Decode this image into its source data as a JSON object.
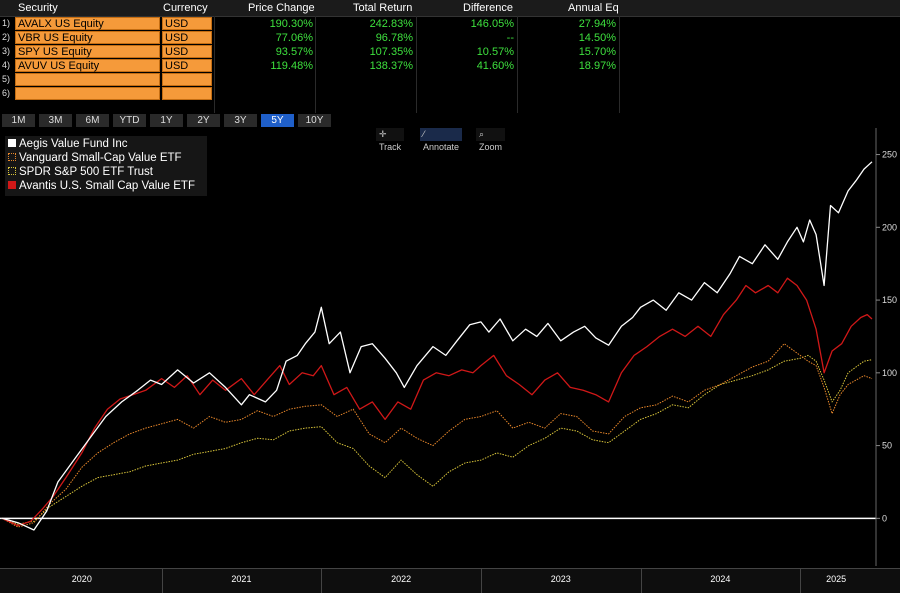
{
  "table": {
    "headers": [
      "Security",
      "Currency",
      "Price Change",
      "Total Return",
      "Difference",
      "Annual Eq"
    ],
    "rows": [
      {
        "num": "1)",
        "security": "AVALX US Equity",
        "currency": "USD",
        "price_change": "190.30%",
        "total_return": "242.83%",
        "difference": "146.05%",
        "annual_eq": "27.94%"
      },
      {
        "num": "2)",
        "security": "VBR US Equity",
        "currency": "USD",
        "price_change": "77.06%",
        "total_return": "96.78%",
        "difference": "--",
        "annual_eq": "14.50%"
      },
      {
        "num": "3)",
        "security": "SPY US Equity",
        "currency": "USD",
        "price_change": "93.57%",
        "total_return": "107.35%",
        "difference": "10.57%",
        "annual_eq": "15.70%"
      },
      {
        "num": "4)",
        "security": "AVUV US Equity",
        "currency": "USD",
        "price_change": "119.48%",
        "total_return": "138.37%",
        "difference": "41.60%",
        "annual_eq": "18.97%"
      },
      {
        "num": "5)",
        "security": "",
        "currency": "",
        "price_change": "",
        "total_return": "",
        "difference": "",
        "annual_eq": ""
      },
      {
        "num": "6)",
        "security": "",
        "currency": "",
        "price_change": "",
        "total_return": "",
        "difference": "",
        "annual_eq": ""
      }
    ]
  },
  "ranges": [
    "1M",
    "3M",
    "6M",
    "YTD",
    "1Y",
    "2Y",
    "3Y",
    "5Y",
    "10Y"
  ],
  "active_range": "5Y",
  "tools": {
    "track": "Track",
    "annotate": "Annotate",
    "zoom": "Zoom"
  },
  "colors": {
    "header_bg": "#1b1b1b",
    "cell_orange": "#f59a3a",
    "positive_green": "#3ee03e",
    "active_blue": "#1f5fc9",
    "aegis": "#ffffff",
    "vbr": "#e8872a",
    "spy": "#d8c43a",
    "avuv": "#d01818"
  },
  "chart_data": {
    "type": "line",
    "x_labels": [
      "2020",
      "2021",
      "2022",
      "2023",
      "2024",
      "2025"
    ],
    "y_ticks": [
      0,
      50,
      100,
      150,
      200,
      250
    ],
    "ylim": [
      -30,
      260
    ],
    "x_range": [
      2020.0,
      2025.45
    ],
    "grid": false,
    "legend_position": "top-left",
    "series": [
      {
        "name": "Aegis Value Fund Inc",
        "key": "aegis",
        "style": "solid",
        "points": [
          [
            2020.0,
            0
          ],
          [
            2020.1,
            -3
          ],
          [
            2020.2,
            -8
          ],
          [
            2020.28,
            5
          ],
          [
            2020.35,
            25
          ],
          [
            2020.45,
            40
          ],
          [
            2020.55,
            55
          ],
          [
            2020.65,
            70
          ],
          [
            2020.75,
            80
          ],
          [
            2020.85,
            88
          ],
          [
            2020.93,
            95
          ],
          [
            2021.0,
            92
          ],
          [
            2021.1,
            102
          ],
          [
            2021.2,
            93
          ],
          [
            2021.3,
            100
          ],
          [
            2021.4,
            90
          ],
          [
            2021.5,
            78
          ],
          [
            2021.55,
            85
          ],
          [
            2021.65,
            80
          ],
          [
            2021.72,
            88
          ],
          [
            2021.78,
            108
          ],
          [
            2021.85,
            112
          ],
          [
            2021.9,
            120
          ],
          [
            2021.96,
            128
          ],
          [
            2022.0,
            145
          ],
          [
            2022.05,
            120
          ],
          [
            2022.12,
            128
          ],
          [
            2022.18,
            100
          ],
          [
            2022.25,
            118
          ],
          [
            2022.32,
            120
          ],
          [
            2022.4,
            110
          ],
          [
            2022.47,
            100
          ],
          [
            2022.52,
            90
          ],
          [
            2022.6,
            105
          ],
          [
            2022.7,
            118
          ],
          [
            2022.78,
            112
          ],
          [
            2022.85,
            122
          ],
          [
            2022.93,
            133
          ],
          [
            2023.0,
            135
          ],
          [
            2023.05,
            128
          ],
          [
            2023.12,
            137
          ],
          [
            2023.2,
            122
          ],
          [
            2023.28,
            130
          ],
          [
            2023.35,
            125
          ],
          [
            2023.42,
            134
          ],
          [
            2023.5,
            122
          ],
          [
            2023.58,
            128
          ],
          [
            2023.65,
            132
          ],
          [
            2023.72,
            124
          ],
          [
            2023.8,
            119
          ],
          [
            2023.88,
            132
          ],
          [
            2023.95,
            138
          ],
          [
            2024.0,
            145
          ],
          [
            2024.08,
            150
          ],
          [
            2024.16,
            143
          ],
          [
            2024.24,
            155
          ],
          [
            2024.32,
            150
          ],
          [
            2024.4,
            162
          ],
          [
            2024.48,
            155
          ],
          [
            2024.56,
            168
          ],
          [
            2024.62,
            180
          ],
          [
            2024.7,
            175
          ],
          [
            2024.78,
            188
          ],
          [
            2024.86,
            178
          ],
          [
            2024.92,
            190
          ],
          [
            2024.98,
            200
          ],
          [
            2025.02,
            190
          ],
          [
            2025.06,
            205
          ],
          [
            2025.1,
            195
          ],
          [
            2025.15,
            160
          ],
          [
            2025.19,
            215
          ],
          [
            2025.24,
            210
          ],
          [
            2025.3,
            225
          ],
          [
            2025.35,
            232
          ],
          [
            2025.4,
            240
          ],
          [
            2025.45,
            245
          ]
        ]
      },
      {
        "name": "Vanguard Small-Cap Value ETF",
        "key": "vbr",
        "style": "dotted",
        "points": [
          [
            2020.0,
            0
          ],
          [
            2020.1,
            -6
          ],
          [
            2020.2,
            -3
          ],
          [
            2020.3,
            10
          ],
          [
            2020.4,
            20
          ],
          [
            2020.5,
            35
          ],
          [
            2020.6,
            45
          ],
          [
            2020.7,
            52
          ],
          [
            2020.8,
            58
          ],
          [
            2020.9,
            62
          ],
          [
            2021.0,
            65
          ],
          [
            2021.1,
            68
          ],
          [
            2021.2,
            62
          ],
          [
            2021.3,
            70
          ],
          [
            2021.4,
            66
          ],
          [
            2021.5,
            68
          ],
          [
            2021.6,
            74
          ],
          [
            2021.7,
            70
          ],
          [
            2021.8,
            75
          ],
          [
            2021.9,
            77
          ],
          [
            2022.0,
            78
          ],
          [
            2022.1,
            70
          ],
          [
            2022.2,
            75
          ],
          [
            2022.3,
            58
          ],
          [
            2022.4,
            52
          ],
          [
            2022.5,
            62
          ],
          [
            2022.6,
            55
          ],
          [
            2022.7,
            50
          ],
          [
            2022.8,
            60
          ],
          [
            2022.9,
            68
          ],
          [
            2023.0,
            70
          ],
          [
            2023.1,
            74
          ],
          [
            2023.2,
            62
          ],
          [
            2023.3,
            66
          ],
          [
            2023.4,
            62
          ],
          [
            2023.5,
            72
          ],
          [
            2023.6,
            70
          ],
          [
            2023.7,
            60
          ],
          [
            2023.8,
            58
          ],
          [
            2023.9,
            70
          ],
          [
            2024.0,
            76
          ],
          [
            2024.1,
            78
          ],
          [
            2024.2,
            84
          ],
          [
            2024.3,
            80
          ],
          [
            2024.4,
            88
          ],
          [
            2024.5,
            92
          ],
          [
            2024.6,
            98
          ],
          [
            2024.7,
            104
          ],
          [
            2024.8,
            108
          ],
          [
            2024.9,
            120
          ],
          [
            2025.0,
            112
          ],
          [
            2025.05,
            108
          ],
          [
            2025.1,
            105
          ],
          [
            2025.15,
            90
          ],
          [
            2025.2,
            72
          ],
          [
            2025.25,
            85
          ],
          [
            2025.3,
            92
          ],
          [
            2025.35,
            95
          ],
          [
            2025.4,
            98
          ],
          [
            2025.45,
            96
          ]
        ]
      },
      {
        "name": "SPDR S&P 500 ETF Trust",
        "key": "spy",
        "style": "dotted",
        "points": [
          [
            2020.0,
            0
          ],
          [
            2020.1,
            -4
          ],
          [
            2020.2,
            -2
          ],
          [
            2020.3,
            8
          ],
          [
            2020.4,
            15
          ],
          [
            2020.5,
            22
          ],
          [
            2020.6,
            28
          ],
          [
            2020.7,
            30
          ],
          [
            2020.8,
            32
          ],
          [
            2020.9,
            36
          ],
          [
            2021.0,
            38
          ],
          [
            2021.1,
            40
          ],
          [
            2021.2,
            44
          ],
          [
            2021.3,
            46
          ],
          [
            2021.4,
            48
          ],
          [
            2021.5,
            52
          ],
          [
            2021.6,
            55
          ],
          [
            2021.7,
            54
          ],
          [
            2021.8,
            60
          ],
          [
            2021.9,
            62
          ],
          [
            2022.0,
            63
          ],
          [
            2022.1,
            52
          ],
          [
            2022.2,
            48
          ],
          [
            2022.3,
            36
          ],
          [
            2022.4,
            28
          ],
          [
            2022.5,
            40
          ],
          [
            2022.6,
            30
          ],
          [
            2022.7,
            22
          ],
          [
            2022.8,
            32
          ],
          [
            2022.9,
            38
          ],
          [
            2023.0,
            40
          ],
          [
            2023.1,
            45
          ],
          [
            2023.2,
            42
          ],
          [
            2023.3,
            50
          ],
          [
            2023.4,
            55
          ],
          [
            2023.5,
            62
          ],
          [
            2023.6,
            60
          ],
          [
            2023.7,
            54
          ],
          [
            2023.8,
            52
          ],
          [
            2023.9,
            60
          ],
          [
            2024.0,
            68
          ],
          [
            2024.1,
            72
          ],
          [
            2024.2,
            78
          ],
          [
            2024.3,
            76
          ],
          [
            2024.4,
            85
          ],
          [
            2024.5,
            92
          ],
          [
            2024.6,
            95
          ],
          [
            2024.7,
            98
          ],
          [
            2024.8,
            102
          ],
          [
            2024.9,
            108
          ],
          [
            2025.0,
            110
          ],
          [
            2025.05,
            112
          ],
          [
            2025.1,
            108
          ],
          [
            2025.15,
            95
          ],
          [
            2025.2,
            80
          ],
          [
            2025.25,
            88
          ],
          [
            2025.3,
            100
          ],
          [
            2025.35,
            104
          ],
          [
            2025.4,
            108
          ],
          [
            2025.45,
            109
          ]
        ]
      },
      {
        "name": "Avantis U.S. Small Cap Value ETF",
        "key": "avuv",
        "style": "solid",
        "points": [
          [
            2020.0,
            0
          ],
          [
            2020.1,
            -5
          ],
          [
            2020.18,
            -2
          ],
          [
            2020.25,
            6
          ],
          [
            2020.32,
            15
          ],
          [
            2020.4,
            28
          ],
          [
            2020.5,
            45
          ],
          [
            2020.58,
            62
          ],
          [
            2020.66,
            75
          ],
          [
            2020.74,
            82
          ],
          [
            2020.82,
            85
          ],
          [
            2020.9,
            88
          ],
          [
            2021.0,
            96
          ],
          [
            2021.08,
            90
          ],
          [
            2021.16,
            98
          ],
          [
            2021.24,
            85
          ],
          [
            2021.32,
            95
          ],
          [
            2021.4,
            88
          ],
          [
            2021.5,
            96
          ],
          [
            2021.58,
            85
          ],
          [
            2021.66,
            95
          ],
          [
            2021.74,
            105
          ],
          [
            2021.8,
            92
          ],
          [
            2021.88,
            100
          ],
          [
            2021.95,
            98
          ],
          [
            2022.0,
            105
          ],
          [
            2022.08,
            85
          ],
          [
            2022.16,
            90
          ],
          [
            2022.24,
            75
          ],
          [
            2022.32,
            80
          ],
          [
            2022.4,
            68
          ],
          [
            2022.48,
            80
          ],
          [
            2022.56,
            75
          ],
          [
            2022.64,
            95
          ],
          [
            2022.72,
            100
          ],
          [
            2022.8,
            98
          ],
          [
            2022.88,
            102
          ],
          [
            2022.95,
            100
          ],
          [
            2023.0,
            105
          ],
          [
            2023.08,
            112
          ],
          [
            2023.16,
            98
          ],
          [
            2023.24,
            92
          ],
          [
            2023.32,
            85
          ],
          [
            2023.4,
            95
          ],
          [
            2023.48,
            100
          ],
          [
            2023.56,
            90
          ],
          [
            2023.64,
            88
          ],
          [
            2023.72,
            85
          ],
          [
            2023.8,
            80
          ],
          [
            2023.88,
            100
          ],
          [
            2023.96,
            112
          ],
          [
            2024.04,
            118
          ],
          [
            2024.12,
            125
          ],
          [
            2024.2,
            130
          ],
          [
            2024.28,
            125
          ],
          [
            2024.36,
            132
          ],
          [
            2024.44,
            125
          ],
          [
            2024.52,
            140
          ],
          [
            2024.6,
            150
          ],
          [
            2024.66,
            160
          ],
          [
            2024.72,
            155
          ],
          [
            2024.8,
            160
          ],
          [
            2024.86,
            155
          ],
          [
            2024.92,
            165
          ],
          [
            2024.98,
            160
          ],
          [
            2025.04,
            150
          ],
          [
            2025.1,
            130
          ],
          [
            2025.15,
            100
          ],
          [
            2025.2,
            115
          ],
          [
            2025.26,
            120
          ],
          [
            2025.32,
            132
          ],
          [
            2025.38,
            138
          ],
          [
            2025.42,
            140
          ],
          [
            2025.45,
            137
          ]
        ]
      }
    ]
  }
}
